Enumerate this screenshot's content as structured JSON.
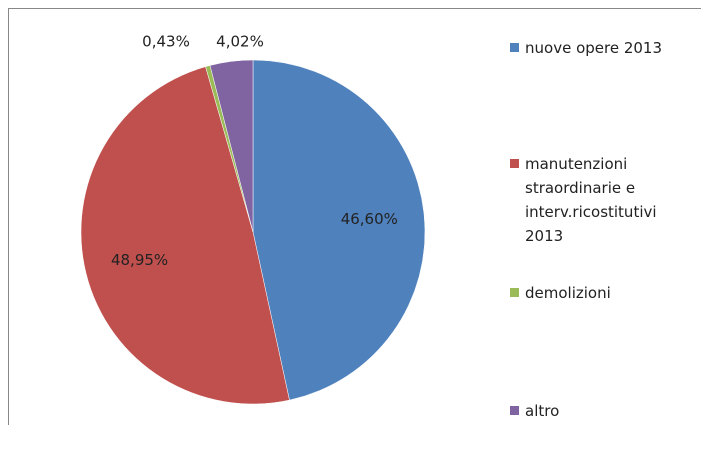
{
  "chart_data": {
    "type": "pie",
    "categories": [
      "nuove opere 2013",
      "manutenzioni straordinarie e interv.ricostitutivi 2013",
      "demolizioni",
      "altro"
    ],
    "values": [
      46.6,
      48.95,
      0.43,
      4.02
    ],
    "value_labels": [
      "46,60%",
      "48,95%",
      "0,43%",
      "4,02%"
    ],
    "colors": [
      "#4f81bd",
      "#c0504d",
      "#9bbb59",
      "#8064a2"
    ]
  }
}
